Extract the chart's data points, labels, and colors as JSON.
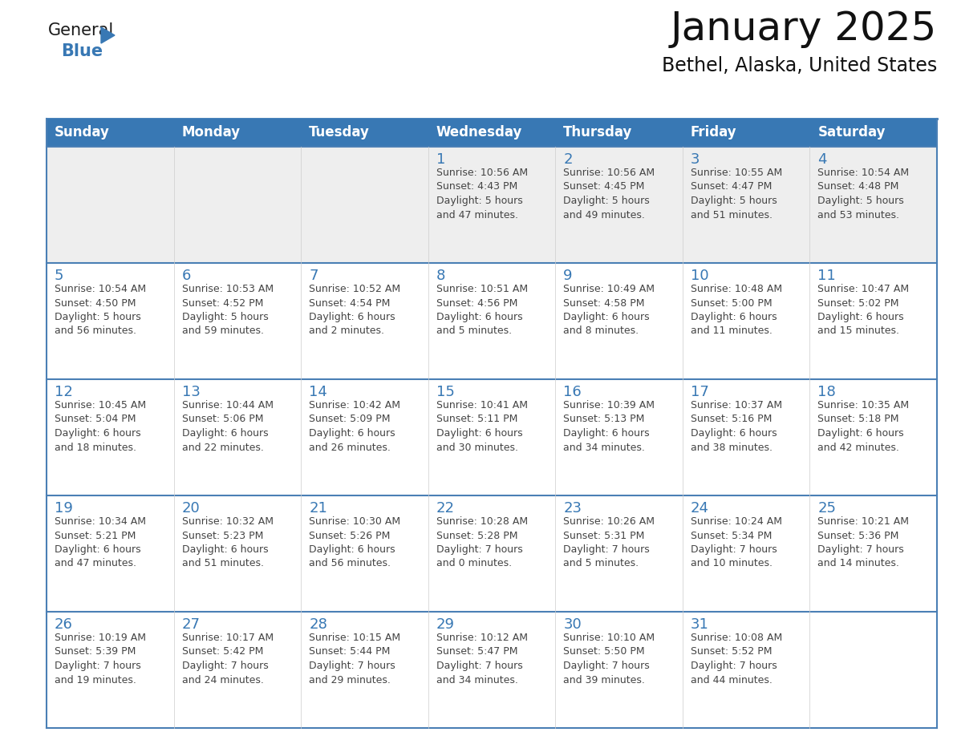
{
  "title": "January 2025",
  "subtitle": "Bethel, Alaska, United States",
  "header_bg": "#3878b4",
  "header_text": "#ffffff",
  "row_bg_week1": "#eeeeee",
  "row_bg_other": "#ffffff",
  "cell_border_color": "#4a7fb5",
  "day_number_color": "#3878b4",
  "text_color": "#444444",
  "days_of_week": [
    "Sunday",
    "Monday",
    "Tuesday",
    "Wednesday",
    "Thursday",
    "Friday",
    "Saturday"
  ],
  "weeks": [
    [
      {
        "day": "",
        "info": ""
      },
      {
        "day": "",
        "info": ""
      },
      {
        "day": "",
        "info": ""
      },
      {
        "day": "1",
        "info": "Sunrise: 10:56 AM\nSunset: 4:43 PM\nDaylight: 5 hours\nand 47 minutes."
      },
      {
        "day": "2",
        "info": "Sunrise: 10:56 AM\nSunset: 4:45 PM\nDaylight: 5 hours\nand 49 minutes."
      },
      {
        "day": "3",
        "info": "Sunrise: 10:55 AM\nSunset: 4:47 PM\nDaylight: 5 hours\nand 51 minutes."
      },
      {
        "day": "4",
        "info": "Sunrise: 10:54 AM\nSunset: 4:48 PM\nDaylight: 5 hours\nand 53 minutes."
      }
    ],
    [
      {
        "day": "5",
        "info": "Sunrise: 10:54 AM\nSunset: 4:50 PM\nDaylight: 5 hours\nand 56 minutes."
      },
      {
        "day": "6",
        "info": "Sunrise: 10:53 AM\nSunset: 4:52 PM\nDaylight: 5 hours\nand 59 minutes."
      },
      {
        "day": "7",
        "info": "Sunrise: 10:52 AM\nSunset: 4:54 PM\nDaylight: 6 hours\nand 2 minutes."
      },
      {
        "day": "8",
        "info": "Sunrise: 10:51 AM\nSunset: 4:56 PM\nDaylight: 6 hours\nand 5 minutes."
      },
      {
        "day": "9",
        "info": "Sunrise: 10:49 AM\nSunset: 4:58 PM\nDaylight: 6 hours\nand 8 minutes."
      },
      {
        "day": "10",
        "info": "Sunrise: 10:48 AM\nSunset: 5:00 PM\nDaylight: 6 hours\nand 11 minutes."
      },
      {
        "day": "11",
        "info": "Sunrise: 10:47 AM\nSunset: 5:02 PM\nDaylight: 6 hours\nand 15 minutes."
      }
    ],
    [
      {
        "day": "12",
        "info": "Sunrise: 10:45 AM\nSunset: 5:04 PM\nDaylight: 6 hours\nand 18 minutes."
      },
      {
        "day": "13",
        "info": "Sunrise: 10:44 AM\nSunset: 5:06 PM\nDaylight: 6 hours\nand 22 minutes."
      },
      {
        "day": "14",
        "info": "Sunrise: 10:42 AM\nSunset: 5:09 PM\nDaylight: 6 hours\nand 26 minutes."
      },
      {
        "day": "15",
        "info": "Sunrise: 10:41 AM\nSunset: 5:11 PM\nDaylight: 6 hours\nand 30 minutes."
      },
      {
        "day": "16",
        "info": "Sunrise: 10:39 AM\nSunset: 5:13 PM\nDaylight: 6 hours\nand 34 minutes."
      },
      {
        "day": "17",
        "info": "Sunrise: 10:37 AM\nSunset: 5:16 PM\nDaylight: 6 hours\nand 38 minutes."
      },
      {
        "day": "18",
        "info": "Sunrise: 10:35 AM\nSunset: 5:18 PM\nDaylight: 6 hours\nand 42 minutes."
      }
    ],
    [
      {
        "day": "19",
        "info": "Sunrise: 10:34 AM\nSunset: 5:21 PM\nDaylight: 6 hours\nand 47 minutes."
      },
      {
        "day": "20",
        "info": "Sunrise: 10:32 AM\nSunset: 5:23 PM\nDaylight: 6 hours\nand 51 minutes."
      },
      {
        "day": "21",
        "info": "Sunrise: 10:30 AM\nSunset: 5:26 PM\nDaylight: 6 hours\nand 56 minutes."
      },
      {
        "day": "22",
        "info": "Sunrise: 10:28 AM\nSunset: 5:28 PM\nDaylight: 7 hours\nand 0 minutes."
      },
      {
        "day": "23",
        "info": "Sunrise: 10:26 AM\nSunset: 5:31 PM\nDaylight: 7 hours\nand 5 minutes."
      },
      {
        "day": "24",
        "info": "Sunrise: 10:24 AM\nSunset: 5:34 PM\nDaylight: 7 hours\nand 10 minutes."
      },
      {
        "day": "25",
        "info": "Sunrise: 10:21 AM\nSunset: 5:36 PM\nDaylight: 7 hours\nand 14 minutes."
      }
    ],
    [
      {
        "day": "26",
        "info": "Sunrise: 10:19 AM\nSunset: 5:39 PM\nDaylight: 7 hours\nand 19 minutes."
      },
      {
        "day": "27",
        "info": "Sunrise: 10:17 AM\nSunset: 5:42 PM\nDaylight: 7 hours\nand 24 minutes."
      },
      {
        "day": "28",
        "info": "Sunrise: 10:15 AM\nSunset: 5:44 PM\nDaylight: 7 hours\nand 29 minutes."
      },
      {
        "day": "29",
        "info": "Sunrise: 10:12 AM\nSunset: 5:47 PM\nDaylight: 7 hours\nand 34 minutes."
      },
      {
        "day": "30",
        "info": "Sunrise: 10:10 AM\nSunset: 5:50 PM\nDaylight: 7 hours\nand 39 minutes."
      },
      {
        "day": "31",
        "info": "Sunrise: 10:08 AM\nSunset: 5:52 PM\nDaylight: 7 hours\nand 44 minutes."
      },
      {
        "day": "",
        "info": ""
      }
    ]
  ],
  "logo_color_general": "#1a1a1a",
  "logo_color_blue": "#3878b4",
  "logo_triangle_color": "#3878b4",
  "title_fontsize": 36,
  "subtitle_fontsize": 17,
  "dow_fontsize": 12,
  "day_num_fontsize": 13,
  "info_fontsize": 9
}
